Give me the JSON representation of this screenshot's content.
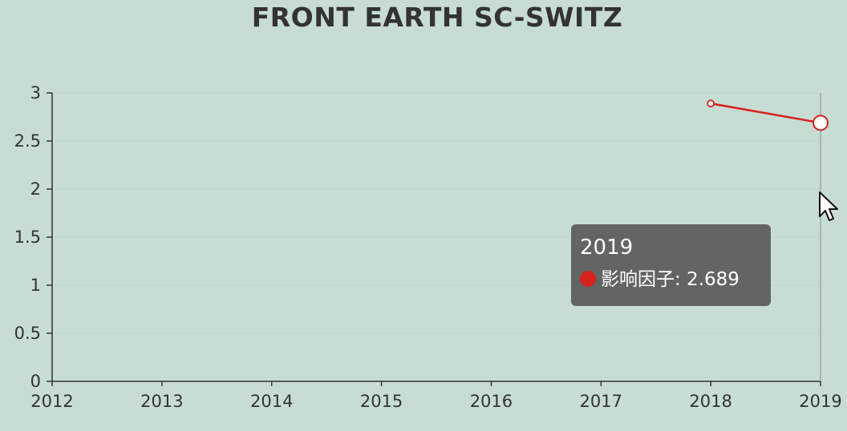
{
  "chart_data": {
    "type": "line",
    "title": "FRONT EARTH SC-SWITZ",
    "xlabel": "",
    "ylabel": "",
    "x_categories": [
      "2012",
      "2013",
      "2014",
      "2015",
      "2016",
      "2017",
      "2018",
      "2019"
    ],
    "y_ticks": [
      "0",
      "0.5",
      "1",
      "1.5",
      "2",
      "2.5",
      "3"
    ],
    "ylim": [
      0,
      3
    ],
    "grid": false,
    "series": [
      {
        "name": "影响因子",
        "color": "#d7231d",
        "points": [
          {
            "x": "2018",
            "y": 2.89
          },
          {
            "x": "2019",
            "y": 2.689
          }
        ]
      }
    ]
  },
  "tooltip": {
    "title": "2019",
    "series_name": "影响因子",
    "value_text": "2.689",
    "row_text": "影响因子: 2.689"
  },
  "colors": {
    "background": "#c7ddd3",
    "series": "#d7231d",
    "axis": "#333333"
  },
  "icons": {
    "cursor": "mouse-pointer-icon"
  }
}
